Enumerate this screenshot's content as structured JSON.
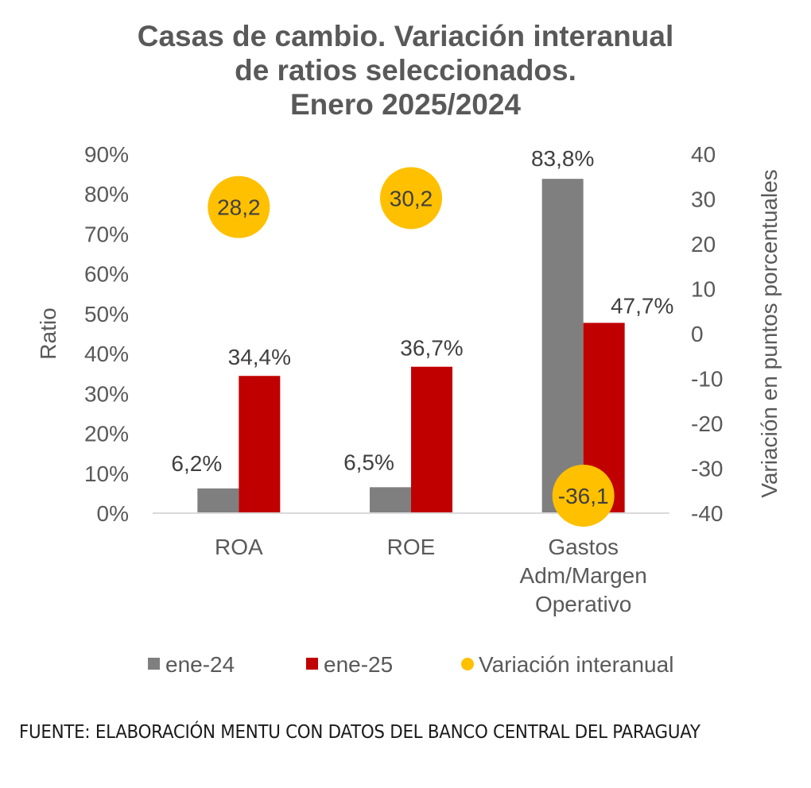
{
  "chart_data": {
    "type": "bar",
    "title": [
      "Casas de cambio. Variación interanual",
      "de ratios seleccionados.",
      "Enero 2025/2024"
    ],
    "categories": [
      [
        "ROA"
      ],
      [
        "ROE"
      ],
      [
        "Gastos",
        "Adm/Margen",
        "Operativo"
      ]
    ],
    "series": [
      {
        "name": "ene-24",
        "axis": "left",
        "kind": "bar",
        "color": "#7f7f7f",
        "values": [
          6.2,
          6.5,
          83.8
        ],
        "labels": [
          "6,2%",
          "6,5%",
          "83,8%"
        ]
      },
      {
        "name": "ene-25",
        "axis": "left",
        "kind": "bar",
        "color": "#c00000",
        "values": [
          34.4,
          36.7,
          47.7
        ],
        "labels": [
          "34,4%",
          "36,7%",
          "47,7%"
        ]
      },
      {
        "name": "Variación interanual",
        "axis": "right",
        "kind": "marker",
        "color": "#ffc000",
        "values": [
          28.2,
          30.2,
          -36.1
        ],
        "labels": [
          "28,2",
          "30,2",
          "-36,1"
        ]
      }
    ],
    "ylabel": "Ratio",
    "ylim": [
      0,
      90
    ],
    "yticks": [
      "0%",
      "10%",
      "20%",
      "30%",
      "40%",
      "50%",
      "60%",
      "70%",
      "80%",
      "90%"
    ],
    "y2label": "Variación en puntos porcentuales",
    "y2lim": [
      -40,
      40
    ],
    "y2ticks": [
      "-40",
      "-30",
      "-20",
      "-10",
      "0",
      "10",
      "20",
      "30",
      "40"
    ],
    "grid": false,
    "legend_position": "bottom"
  },
  "source": "FUENTE: ELABORACIÓN MENTU CON DATOS DEL BANCO CENTRAL DEL PARAGUAY"
}
